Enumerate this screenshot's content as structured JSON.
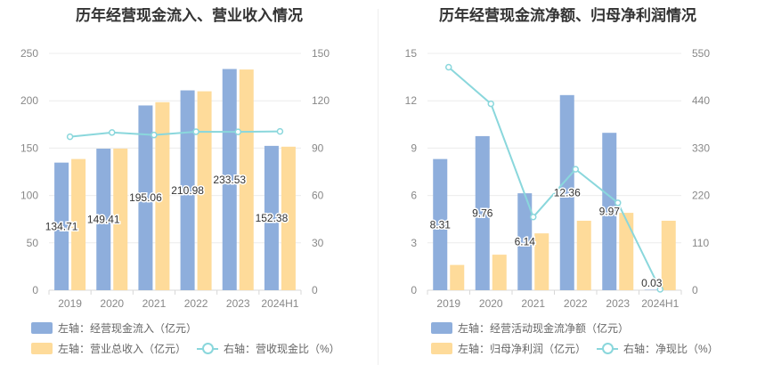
{
  "chart_data": [
    {
      "type": "bar",
      "title": "历年经营现金流入、营业收入情况",
      "categories": [
        "2019",
        "2020",
        "2021",
        "2022",
        "2023",
        "2024H1"
      ],
      "left_axis": {
        "min": 0,
        "max": 250,
        "ticks": [
          "0",
          "50",
          "100",
          "150",
          "200",
          "250"
        ]
      },
      "right_axis": {
        "min": 0,
        "max": 150,
        "ticks": [
          "0",
          "30",
          "60",
          "90",
          "120",
          "150"
        ]
      },
      "series": [
        {
          "name": "左轴：经营现金流入（亿元）",
          "kind": "bar",
          "axis": "left",
          "color": "#8eaedc",
          "values": [
            134.71,
            149.41,
            195.06,
            210.98,
            233.53,
            152.38
          ],
          "labels": [
            "134.71",
            "149.41",
            "195.06",
            "210.98",
            "233.53",
            "152.38"
          ]
        },
        {
          "name": "左轴：营业总收入（亿元）",
          "kind": "bar",
          "axis": "left",
          "color": "#fedb9a",
          "values": [
            138.5,
            149.5,
            198.5,
            210.0,
            233.0,
            151.5
          ]
        },
        {
          "name": "右轴：营收现金比（%）",
          "kind": "line",
          "axis": "right",
          "color": "#8ad7dc",
          "values": [
            97.2,
            99.9,
            98.3,
            100.4,
            100.3,
            100.6
          ]
        }
      ]
    },
    {
      "type": "bar",
      "title": "历年经营现金流净额、归母净利润情况",
      "categories": [
        "2019",
        "2020",
        "2021",
        "2022",
        "2023",
        "2024H1"
      ],
      "left_axis": {
        "min": 0,
        "max": 15,
        "ticks": [
          "0",
          "3",
          "6",
          "9",
          "12",
          "15"
        ]
      },
      "right_axis": {
        "min": 0,
        "max": 550,
        "ticks": [
          "0",
          "110",
          "220",
          "330",
          "440",
          "550"
        ]
      },
      "series": [
        {
          "name": "左轴：经营活动现金流净额（亿元）",
          "kind": "bar",
          "axis": "left",
          "color": "#8eaedc",
          "values": [
            8.31,
            9.76,
            6.14,
            12.36,
            9.97,
            0.03
          ],
          "labels": [
            "8.31",
            "9.76",
            "6.14",
            "12.36",
            "9.97",
            "0.03"
          ]
        },
        {
          "name": "左轴：归母净利润（亿元）",
          "kind": "bar",
          "axis": "left",
          "color": "#fedb9a",
          "values": [
            1.6,
            2.25,
            3.6,
            4.4,
            4.9,
            4.4
          ]
        },
        {
          "name": "右轴：净现比（%）",
          "kind": "line",
          "axis": "right",
          "color": "#8ad7dc",
          "values": [
            518,
            433,
            170,
            281,
            203,
            2
          ]
        }
      ]
    }
  ]
}
